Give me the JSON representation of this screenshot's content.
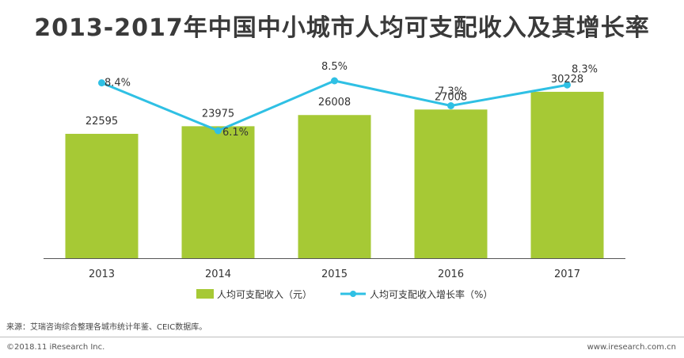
{
  "title": "2013-2017年中国中小城市人均可支配收入及其增长率",
  "chart_data": {
    "type": "bar+line",
    "categories": [
      "2013",
      "2014",
      "2015",
      "2016",
      "2017"
    ],
    "series": [
      {
        "name": "人均可支配收入（元）",
        "type": "bar",
        "color": "#a6c935",
        "values": [
          22595,
          23975,
          26008,
          27008,
          30228
        ]
      },
      {
        "name": "人均可支配收入增长率（%）",
        "type": "line",
        "color": "#2fc0e4",
        "values": [
          8.4,
          6.1,
          8.5,
          7.3,
          8.3
        ],
        "labels": [
          "8.4%",
          "6.1%",
          "8.5%",
          "7.3%",
          "8.3%"
        ]
      }
    ],
    "bar_ylim": [
      0,
      40000
    ],
    "line_ylim": [
      0,
      10
    ],
    "legend": "bottom-center",
    "grid": false
  },
  "source": "来源：艾瑞咨询综合整理各城市统计年鉴、CEIC数据库。",
  "copyright": "©2018.11 iResearch Inc.",
  "website": "www.iresearch.com.cn"
}
